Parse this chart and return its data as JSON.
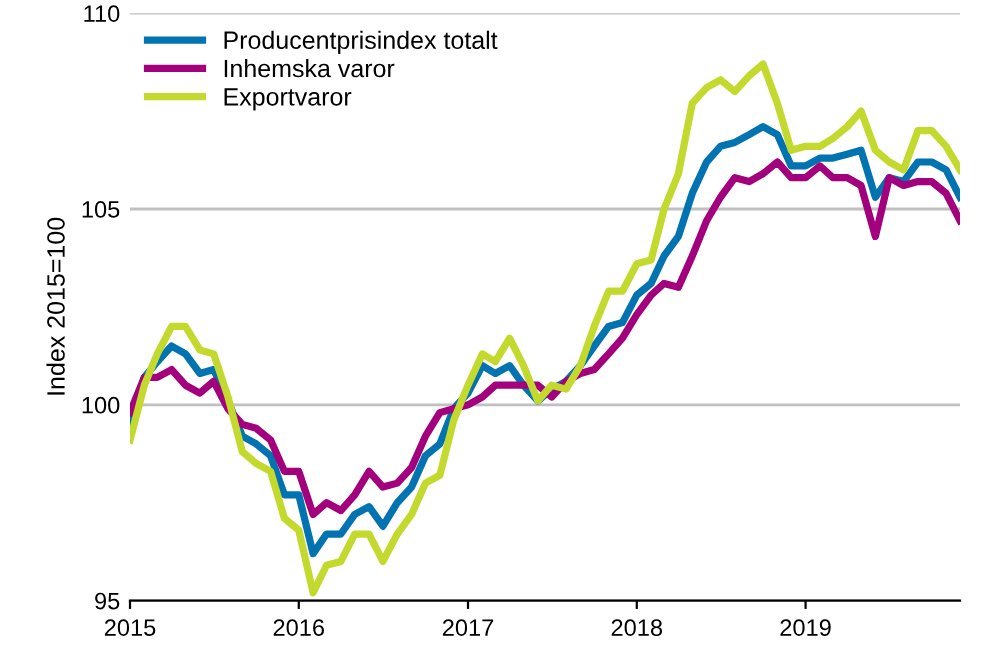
{
  "chart_data": {
    "type": "line",
    "ylabel": "Index 2015=100",
    "x": [
      "2015-01",
      "2015-02",
      "2015-03",
      "2015-04",
      "2015-05",
      "2015-06",
      "2015-07",
      "2015-08",
      "2015-09",
      "2015-10",
      "2015-11",
      "2015-12",
      "2016-01",
      "2016-02",
      "2016-03",
      "2016-04",
      "2016-05",
      "2016-06",
      "2016-07",
      "2016-08",
      "2016-09",
      "2016-10",
      "2016-11",
      "2016-12",
      "2017-01",
      "2017-02",
      "2017-03",
      "2017-04",
      "2017-05",
      "2017-06",
      "2017-07",
      "2017-08",
      "2017-09",
      "2017-10",
      "2017-11",
      "2017-12",
      "2018-01",
      "2018-02",
      "2018-03",
      "2018-04",
      "2018-05",
      "2018-06",
      "2018-07",
      "2018-08",
      "2018-09",
      "2018-10",
      "2018-11",
      "2018-12",
      "2019-01",
      "2019-02",
      "2019-03",
      "2019-04",
      "2019-05",
      "2019-06",
      "2019-07",
      "2019-08",
      "2019-09",
      "2019-10",
      "2019-11",
      "2019-12"
    ],
    "series": [
      {
        "name": "Producentprisindex totalt",
        "color": "#0073b0",
        "values": [
          99.5,
          100.7,
          101.1,
          101.5,
          101.3,
          100.8,
          100.9,
          100.1,
          99.2,
          99.0,
          98.7,
          97.7,
          97.7,
          96.2,
          96.7,
          96.7,
          97.2,
          97.4,
          96.9,
          97.5,
          97.9,
          98.7,
          99.0,
          99.9,
          100.3,
          101.0,
          100.8,
          101.0,
          100.5,
          100.1,
          100.4,
          100.6,
          101.0,
          101.5,
          102.0,
          102.1,
          102.8,
          103.1,
          103.8,
          104.3,
          105.4,
          106.2,
          106.6,
          106.7,
          106.9,
          107.1,
          106.9,
          106.1,
          106.1,
          106.3,
          106.3,
          106.4,
          106.5,
          105.3,
          105.8,
          105.7,
          106.2,
          106.2,
          106.0,
          105.3
        ]
      },
      {
        "name": "Inhemska varor",
        "color": "#a3007d",
        "values": [
          99.8,
          100.7,
          100.7,
          100.9,
          100.5,
          100.3,
          100.6,
          99.9,
          99.5,
          99.4,
          99.1,
          98.3,
          98.3,
          97.2,
          97.5,
          97.3,
          97.7,
          98.3,
          97.9,
          98.0,
          98.4,
          99.2,
          99.8,
          99.9,
          100.0,
          100.2,
          100.5,
          100.5,
          100.5,
          100.5,
          100.2,
          100.6,
          100.8,
          100.9,
          101.3,
          101.7,
          102.3,
          102.8,
          103.1,
          103.0,
          103.8,
          104.7,
          105.3,
          105.8,
          105.7,
          105.9,
          106.2,
          105.8,
          105.8,
          106.1,
          105.8,
          105.8,
          105.6,
          104.3,
          105.8,
          105.6,
          105.7,
          105.7,
          105.4,
          104.7
        ]
      },
      {
        "name": "Exportvaror",
        "color": "#c4d92e",
        "values": [
          99.1,
          100.5,
          101.3,
          102.0,
          102.0,
          101.4,
          101.3,
          100.2,
          98.8,
          98.5,
          98.3,
          97.1,
          96.8,
          95.2,
          95.9,
          96.0,
          96.7,
          96.7,
          96.0,
          96.7,
          97.2,
          98.0,
          98.2,
          99.6,
          100.5,
          101.3,
          101.1,
          101.7,
          101.0,
          100.1,
          100.5,
          100.4,
          101.0,
          102.0,
          102.9,
          102.9,
          103.6,
          103.7,
          105.0,
          105.9,
          107.7,
          108.1,
          108.3,
          108.0,
          108.4,
          108.7,
          107.7,
          106.5,
          106.6,
          106.6,
          106.8,
          107.1,
          107.5,
          106.5,
          106.2,
          106.0,
          107.0,
          107.0,
          106.6,
          106.0
        ]
      }
    ],
    "xlim": [
      "2015-01",
      "2019-12"
    ],
    "xticks": [
      {
        "value": "2015-01",
        "label": "2015"
      },
      {
        "value": "2016-01",
        "label": "2016"
      },
      {
        "value": "2017-01",
        "label": "2017"
      },
      {
        "value": "2018-01",
        "label": "2018"
      },
      {
        "value": "2019-01",
        "label": "2019"
      }
    ],
    "ylim": [
      95,
      110
    ],
    "yticks": [
      95,
      100,
      105,
      110
    ],
    "grid": "y",
    "legend": "top left",
    "marker": "none",
    "line_style": "solid"
  }
}
